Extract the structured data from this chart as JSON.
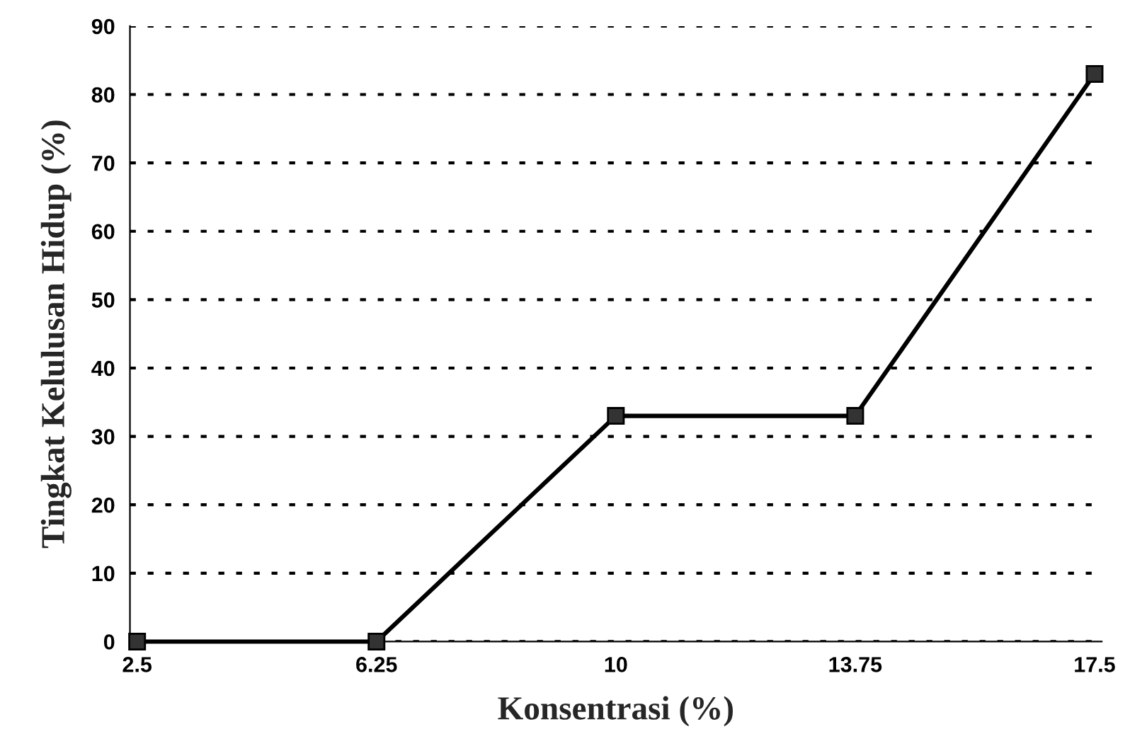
{
  "chart_data": {
    "type": "line",
    "xlabel": "Konsentrasi (%)",
    "ylabel": "Tingkat Kelulusan Hidup (%)",
    "categories": [
      "2.5",
      "6.25",
      "10",
      "13.75",
      "17.5"
    ],
    "series": [
      {
        "color": "#000000",
        "values": [
          0,
          0,
          33,
          33,
          83
        ]
      }
    ],
    "ylim": [
      0,
      90
    ],
    "yticks": [
      0,
      10,
      20,
      30,
      40,
      50,
      60,
      70,
      80,
      90
    ],
    "grid": "y",
    "marker": "square",
    "line_style": "solid"
  }
}
